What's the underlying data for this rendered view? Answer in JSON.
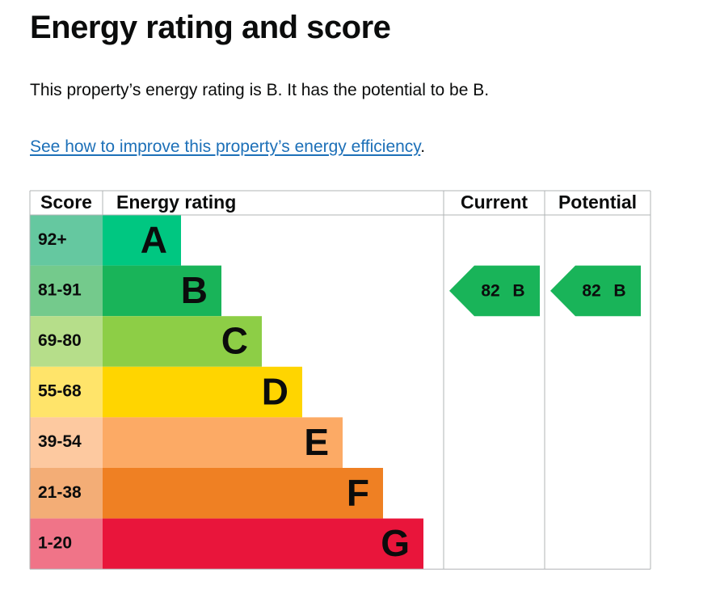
{
  "heading": "Energy rating and score",
  "summary": "This property’s energy rating is B. It has the potential to be B.",
  "link": {
    "text": "See how to improve this property’s energy efficiency",
    "suffix": "."
  },
  "table": {
    "headers": [
      "Score",
      "Energy rating",
      "Current",
      "Potential"
    ],
    "rows": [
      {
        "score": "92+",
        "rating": "A",
        "color": "#00c781",
        "score_color": "#65c8a0"
      },
      {
        "score": "81-91",
        "rating": "B",
        "color": "#19b459",
        "score_color": "#74ca8c"
      },
      {
        "score": "69-80",
        "rating": "C",
        "color": "#8dce46",
        "score_color": "#b6de8a"
      },
      {
        "score": "55-68",
        "rating": "D",
        "color": "#ffd500",
        "score_color": "#ffe46a"
      },
      {
        "score": "39-54",
        "rating": "E",
        "color": "#fcaa65",
        "score_color": "#fdc9a0"
      },
      {
        "score": "21-38",
        "rating": "F",
        "color": "#ef8023",
        "score_color": "#f3ad76"
      },
      {
        "score": "1-20",
        "rating": "G",
        "color": "#e9153b",
        "score_color": "#f07488"
      }
    ],
    "current": {
      "score": 82,
      "rating": "B",
      "color": "#19b459"
    },
    "potential": {
      "score": 82,
      "rating": "B",
      "color": "#19b459"
    }
  }
}
